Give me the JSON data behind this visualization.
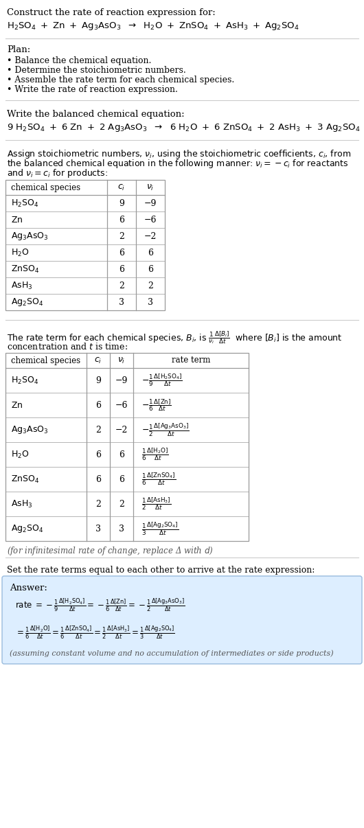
{
  "title_line1": "Construct the rate of reaction expression for:",
  "plan_header": "Plan:",
  "plan_items": [
    "• Balance the chemical equation.",
    "• Determine the stoichiometric numbers.",
    "• Assemble the rate term for each chemical species.",
    "• Write the rate of reaction expression."
  ],
  "balanced_header": "Write the balanced chemical equation:",
  "stoich_intro_line1": "Assign stoichiometric numbers, $\\nu_i$, using the stoichiometric coefficients, $c_i$, from",
  "stoich_intro_line2": "the balanced chemical equation in the following manner: $\\nu_i = -c_i$ for reactants",
  "stoich_intro_line3": "and $\\nu_i = c_i$ for products:",
  "table1_rows": [
    [
      "H_2SO_4",
      "9",
      "−9"
    ],
    [
      "Zn",
      "6",
      "−6"
    ],
    [
      "Ag_3AsO_3",
      "2",
      "−2"
    ],
    [
      "H_2O",
      "6",
      "6"
    ],
    [
      "ZnSO_4",
      "6",
      "6"
    ],
    [
      "AsH_3",
      "2",
      "2"
    ],
    [
      "Ag_2SO_4",
      "3",
      "3"
    ]
  ],
  "rate_term_intro_line1": "The rate term for each chemical species, $B_i$, is $\\frac{1}{\\nu_i}\\frac{\\Delta[B_i]}{\\Delta t}$  where $[B_i]$ is the amount",
  "rate_term_intro_line2": "concentration and $t$ is time:",
  "table2_rows": [
    [
      "H_2SO_4",
      "9",
      "−9"
    ],
    [
      "Zn",
      "6",
      "−6"
    ],
    [
      "Ag_3AsO_3",
      "2",
      "−2"
    ],
    [
      "H_2O",
      "6",
      "6"
    ],
    [
      "ZnSO_4",
      "6",
      "6"
    ],
    [
      "AsH_3",
      "2",
      "2"
    ],
    [
      "Ag_2SO_4",
      "3",
      "3"
    ]
  ],
  "infinitesimal_note": "(for infinitesimal rate of change, replace Δ with $d$)",
  "rate_expr_intro": "Set the rate terms equal to each other to arrive at the rate expression:",
  "answer_label": "Answer:",
  "answer_box_color": "#ddeeff",
  "answer_box_border": "#99bbdd",
  "bg_color": "#ffffff",
  "text_color": "#000000",
  "table_border_color": "#999999",
  "separator_color": "#cccccc",
  "note_color": "#555555"
}
